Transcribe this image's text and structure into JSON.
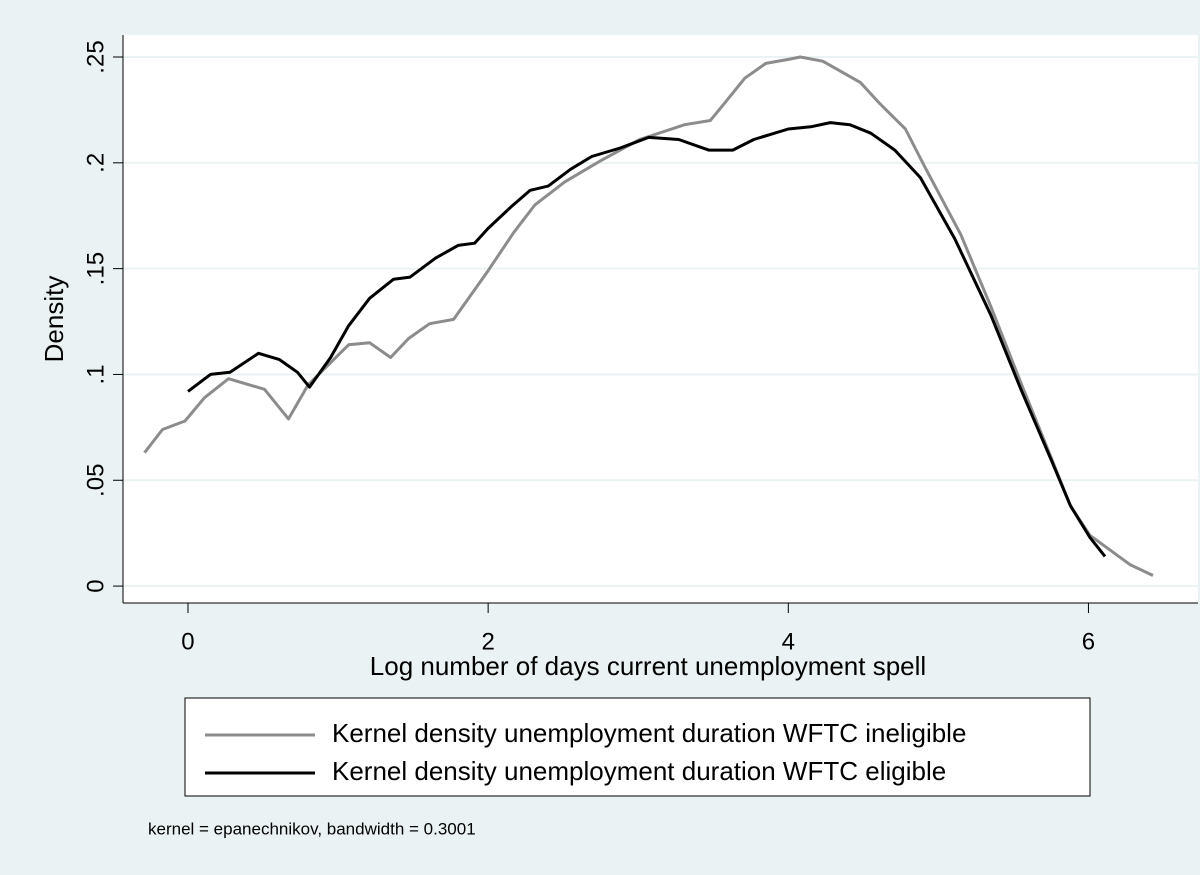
{
  "chart_data": {
    "type": "line",
    "xlabel": "Log number of days current unemployment spell",
    "ylabel": "Density",
    "note": "kernel = epanechnikov, bandwidth = 0.3001",
    "xlim": [
      -0.433,
      6.73
    ],
    "ylim": [
      -0.008,
      0.2604
    ],
    "xticks": [
      0,
      2,
      4,
      6
    ],
    "yticks": [
      0,
      {
        "value": 0.05,
        "label": ".05"
      },
      {
        "value": 0.1,
        "label": ".1"
      },
      {
        "value": 0.15,
        "label": ".15"
      },
      {
        "value": 0.2,
        "label": ".2"
      },
      {
        "value": 0.25,
        "label": ".25"
      }
    ],
    "grid": true,
    "legend": "bottom",
    "series": [
      {
        "name": "Kernel density unemployment duration WFTC ineligible",
        "color": "#8c8c8c",
        "x": [
          -0.29,
          -0.17,
          -0.02,
          0.11,
          0.27,
          0.51,
          0.67,
          0.8,
          1.07,
          1.21,
          1.35,
          1.47,
          1.61,
          1.77,
          2,
          2.17,
          2.31,
          2.51,
          2.75,
          3.01,
          3.31,
          3.48,
          3.55,
          3.71,
          3.85,
          4.01,
          4.08,
          4.23,
          4.48,
          4.61,
          4.78,
          4.91,
          5.15,
          5.35,
          5.55,
          5.75,
          5.88,
          6.01,
          6.28,
          6.43
        ],
        "values": [
          0.063,
          0.074,
          0.078,
          0.089,
          0.098,
          0.093,
          0.079,
          0.095,
          0.114,
          0.115,
          0.108,
          0.117,
          0.124,
          0.126,
          0.149,
          0.167,
          0.18,
          0.191,
          0.201,
          0.211,
          0.218,
          0.22,
          0.226,
          0.24,
          0.247,
          0.249,
          0.25,
          0.248,
          0.238,
          0.228,
          0.216,
          0.198,
          0.166,
          0.132,
          0.096,
          0.061,
          0.038,
          0.024,
          0.01,
          0.005
        ]
      },
      {
        "name": "Kernel density unemployment duration WFTC eligible",
        "color": "#000000",
        "x": [
          0,
          0.15,
          0.28,
          0.47,
          0.61,
          0.73,
          0.81,
          0.95,
          1.07,
          1.21,
          1.37,
          1.48,
          1.65,
          1.8,
          1.91,
          2,
          2.15,
          2.28,
          2.4,
          2.55,
          2.69,
          2.88,
          3.07,
          3.27,
          3.47,
          3.63,
          3.77,
          4,
          4.15,
          4.28,
          4.41,
          4.55,
          4.71,
          4.88,
          5.11,
          5.35,
          5.55,
          5.75,
          5.88,
          6.01,
          6.11
        ],
        "values": [
          0.092,
          0.1,
          0.101,
          0.11,
          0.107,
          0.101,
          0.094,
          0.108,
          0.123,
          0.136,
          0.145,
          0.146,
          0.155,
          0.161,
          0.162,
          0.169,
          0.179,
          0.187,
          0.189,
          0.197,
          0.203,
          0.207,
          0.212,
          0.211,
          0.206,
          0.206,
          0.211,
          0.216,
          0.217,
          0.219,
          0.218,
          0.214,
          0.206,
          0.193,
          0.164,
          0.128,
          0.093,
          0.06,
          0.038,
          0.023,
          0.014
        ]
      }
    ]
  }
}
